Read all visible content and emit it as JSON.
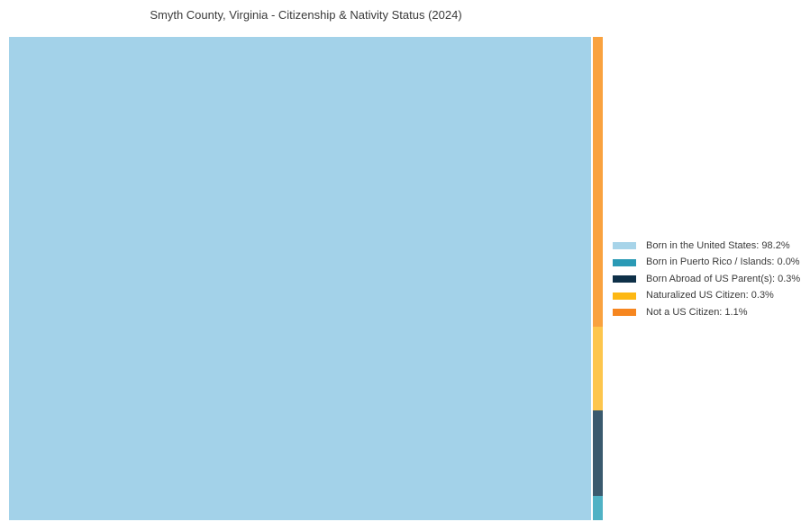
{
  "page": {
    "background_color": "#ffffff",
    "text_color": "#3a3a3a"
  },
  "chart_data": {
    "type": "treemap",
    "title": "Smyth County, Virginia - Citizenship & Nativity Status (2024)",
    "legend_position": "right",
    "grid": false,
    "categories": [
      "Born in the United States",
      "Born in Puerto Rico / Islands",
      "Born Abroad of US Parent(s)",
      "Naturalized US Citizen",
      "Not a US Citizen"
    ],
    "values": [
      98.2,
      0.0,
      0.3,
      0.3,
      1.1
    ],
    "main_tile": "born_us",
    "strip_order": [
      "not_citizen",
      "naturalized",
      "born_abroad",
      "puerto_rico"
    ],
    "items": [
      {
        "key": "born_us",
        "label": "Born in the United States",
        "value_pct": 98.2,
        "display": "Born in the United States: 98.2%",
        "tile_color": "#a3d2e9",
        "legend_color": "#a7d4e9",
        "draw_share": 98.2
      },
      {
        "key": "puerto_rico",
        "label": "Born in Puerto Rico / Islands",
        "value_pct": 0.0,
        "display": "Born in Puerto Rico / Islands: 0.0%",
        "tile_color": "#50b2c5",
        "legend_color": "#2a9ab5",
        "draw_share": 0.09
      },
      {
        "key": "born_abroad",
        "label": "Born Abroad of US Parent(s)",
        "value_pct": 0.3,
        "display": "Born Abroad of US Parent(s): 0.3%",
        "tile_color": "#3a5a6e",
        "legend_color": "#0e3048",
        "draw_share": 0.32
      },
      {
        "key": "naturalized",
        "label": "Naturalized US Citizen",
        "value_pct": 0.3,
        "display": "Naturalized US Citizen: 0.3%",
        "tile_color": "#fdc64d",
        "legend_color": "#fdb813",
        "draw_share": 0.31
      },
      {
        "key": "not_citizen",
        "label": "Not a US Citizen",
        "value_pct": 1.1,
        "display": "Not a US Citizen: 1.1%",
        "tile_color": "#f9a23f",
        "legend_color": "#f6861f",
        "draw_share": 1.08
      }
    ]
  }
}
